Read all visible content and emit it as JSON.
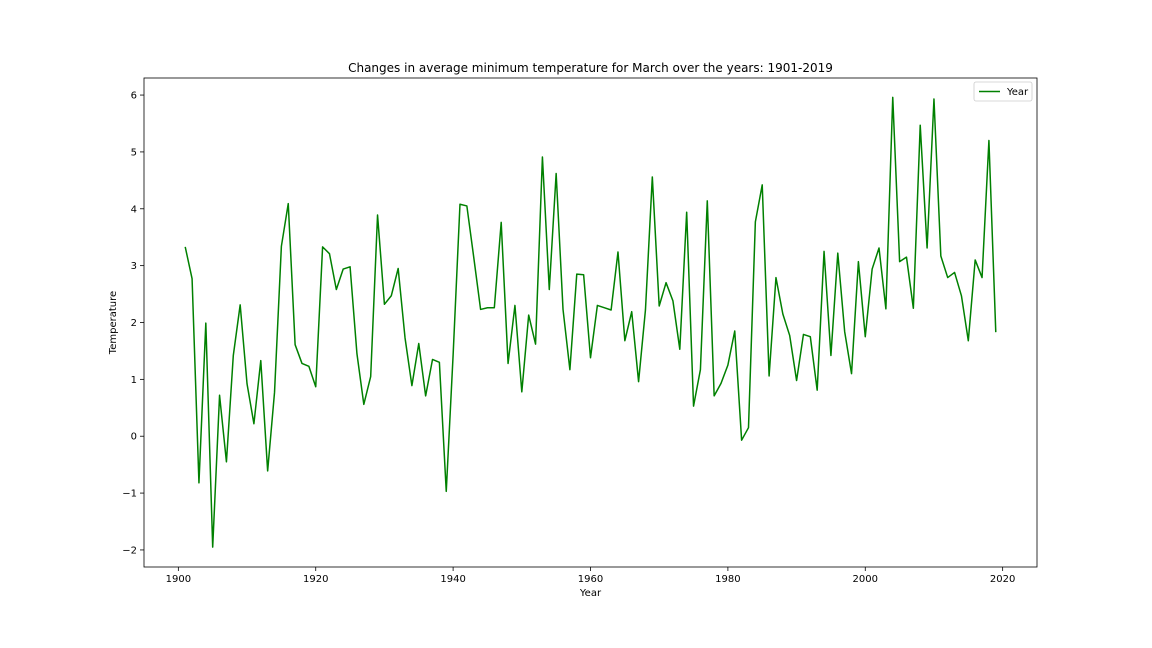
{
  "chart_data": {
    "type": "line",
    "title": "Changes in average minimum temperature for March over the years: 1901-2019",
    "xlabel": "Year",
    "ylabel": "Temperature",
    "xlim": [
      1895,
      2025
    ],
    "ylim": [
      -2.3,
      6.3
    ],
    "xticks": [
      1900,
      1920,
      1940,
      1960,
      1980,
      2000,
      2020
    ],
    "yticks": [
      -2,
      -1,
      0,
      1,
      2,
      3,
      4,
      5,
      6
    ],
    "ytick_labels": [
      "−2",
      "−1",
      "0",
      "1",
      "2",
      "3",
      "4",
      "5",
      "6"
    ],
    "grid": false,
    "legend_position": "top-right",
    "series": [
      {
        "name": "Year",
        "color": "#008000",
        "x_start": 1901,
        "x_end": 2019,
        "values": [
          3.33,
          2.77,
          -0.82,
          1.99,
          -1.95,
          0.72,
          -0.45,
          1.42,
          2.31,
          0.92,
          0.22,
          1.33,
          -0.61,
          0.77,
          3.34,
          4.09,
          1.61,
          1.28,
          1.23,
          0.87,
          3.33,
          3.21,
          2.58,
          2.94,
          2.98,
          1.45,
          0.56,
          1.05,
          3.89,
          2.32,
          2.47,
          2.95,
          1.73,
          0.89,
          1.63,
          0.71,
          1.35,
          1.3,
          -0.97,
          1.43,
          4.08,
          4.05,
          3.15,
          2.23,
          2.26,
          2.26,
          3.76,
          1.28,
          2.3,
          0.78,
          2.13,
          1.62,
          4.91,
          2.58,
          4.62,
          2.23,
          1.17,
          2.85,
          2.84,
          1.38,
          2.3,
          2.26,
          2.22,
          3.24,
          1.68,
          2.19,
          0.96,
          2.22,
          4.56,
          2.29,
          2.7,
          2.38,
          1.53,
          3.94,
          0.53,
          1.17,
          4.14,
          0.71,
          0.93,
          1.25,
          1.85,
          -0.07,
          0.15,
          3.77,
          4.42,
          1.06,
          2.79,
          2.15,
          1.77,
          0.98,
          1.79,
          1.75,
          0.81,
          3.25,
          1.42,
          3.22,
          1.84,
          1.1,
          3.07,
          1.75,
          2.94,
          3.31,
          2.24,
          5.96,
          3.07,
          3.15,
          2.25,
          5.47,
          3.31,
          5.93,
          3.17,
          2.79,
          2.88,
          2.47,
          1.68,
          3.1,
          2.79,
          5.2,
          1.83
        ]
      }
    ]
  }
}
